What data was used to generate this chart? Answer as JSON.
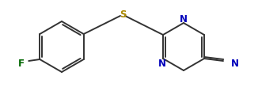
{
  "background_color": "#ffffff",
  "bond_color": "#333333",
  "atom_colors": {
    "N": "#0000bb",
    "S": "#aa8800",
    "F": "#006600",
    "CN_text": "#333333"
  },
  "atom_labels": {
    "S": "S",
    "N_top": "N",
    "N_bot": "N",
    "F": "F",
    "N_cn": "N"
  },
  "figsize": [
    3.26,
    1.16
  ],
  "dpi": 100
}
